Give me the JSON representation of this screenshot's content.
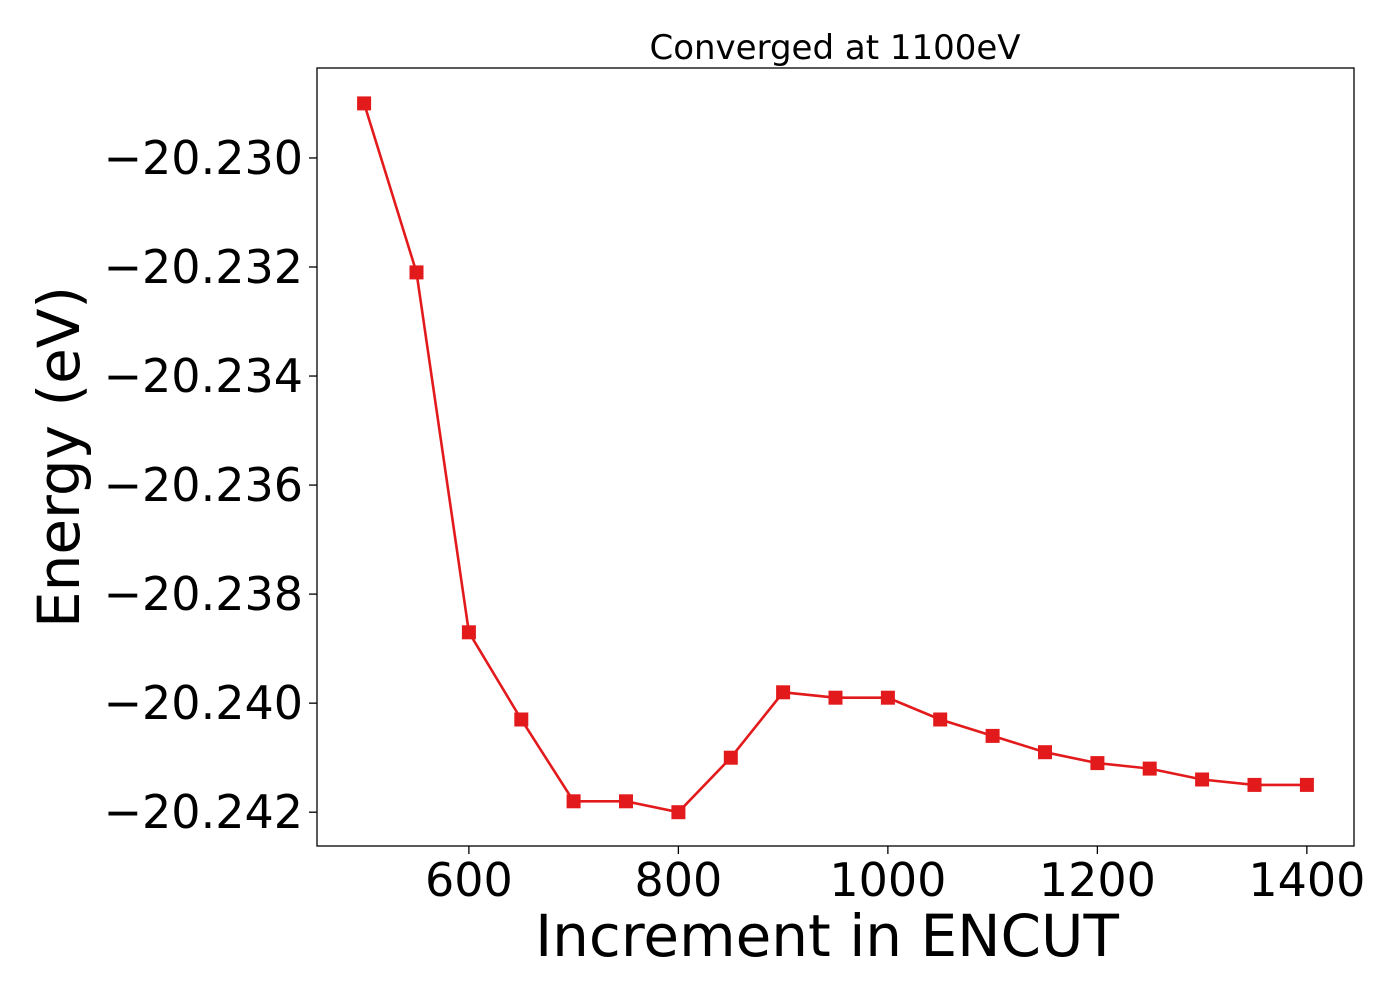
{
  "chart_data": {
    "type": "line",
    "title": "Converged at 1100eV",
    "xlabel": "Increment in ENCUT",
    "ylabel": "Energy (eV)",
    "xlim": [
      455,
      1445
    ],
    "ylim": [
      -20.24262,
      -20.22835
    ],
    "x_ticks": [
      600,
      800,
      1000,
      1200,
      1400
    ],
    "x_tick_labels": [
      "600",
      "800",
      "1000",
      "1200",
      "1400"
    ],
    "y_ticks": [
      -20.23,
      -20.232,
      -20.234,
      -20.236,
      -20.238,
      -20.24,
      -20.242
    ],
    "y_tick_labels": [
      "−20.230",
      "−20.232",
      "−20.234",
      "−20.236",
      "−20.238",
      "−20.240",
      "−20.242"
    ],
    "grid": false,
    "marker": "square",
    "color": "#e31a1c",
    "x": [
      500,
      550,
      600,
      650,
      700,
      750,
      800,
      850,
      900,
      950,
      1000,
      1050,
      1100,
      1150,
      1200,
      1250,
      1300,
      1350,
      1400
    ],
    "y": [
      -20.229,
      -20.2321,
      -20.2387,
      -20.2403,
      -20.2418,
      -20.2418,
      -20.242,
      -20.241,
      -20.2398,
      -20.2399,
      -20.2399,
      -20.2403,
      -20.2406,
      -20.2409,
      -20.2411,
      -20.2412,
      -20.2414,
      -20.2415,
      -20.2415
    ]
  }
}
